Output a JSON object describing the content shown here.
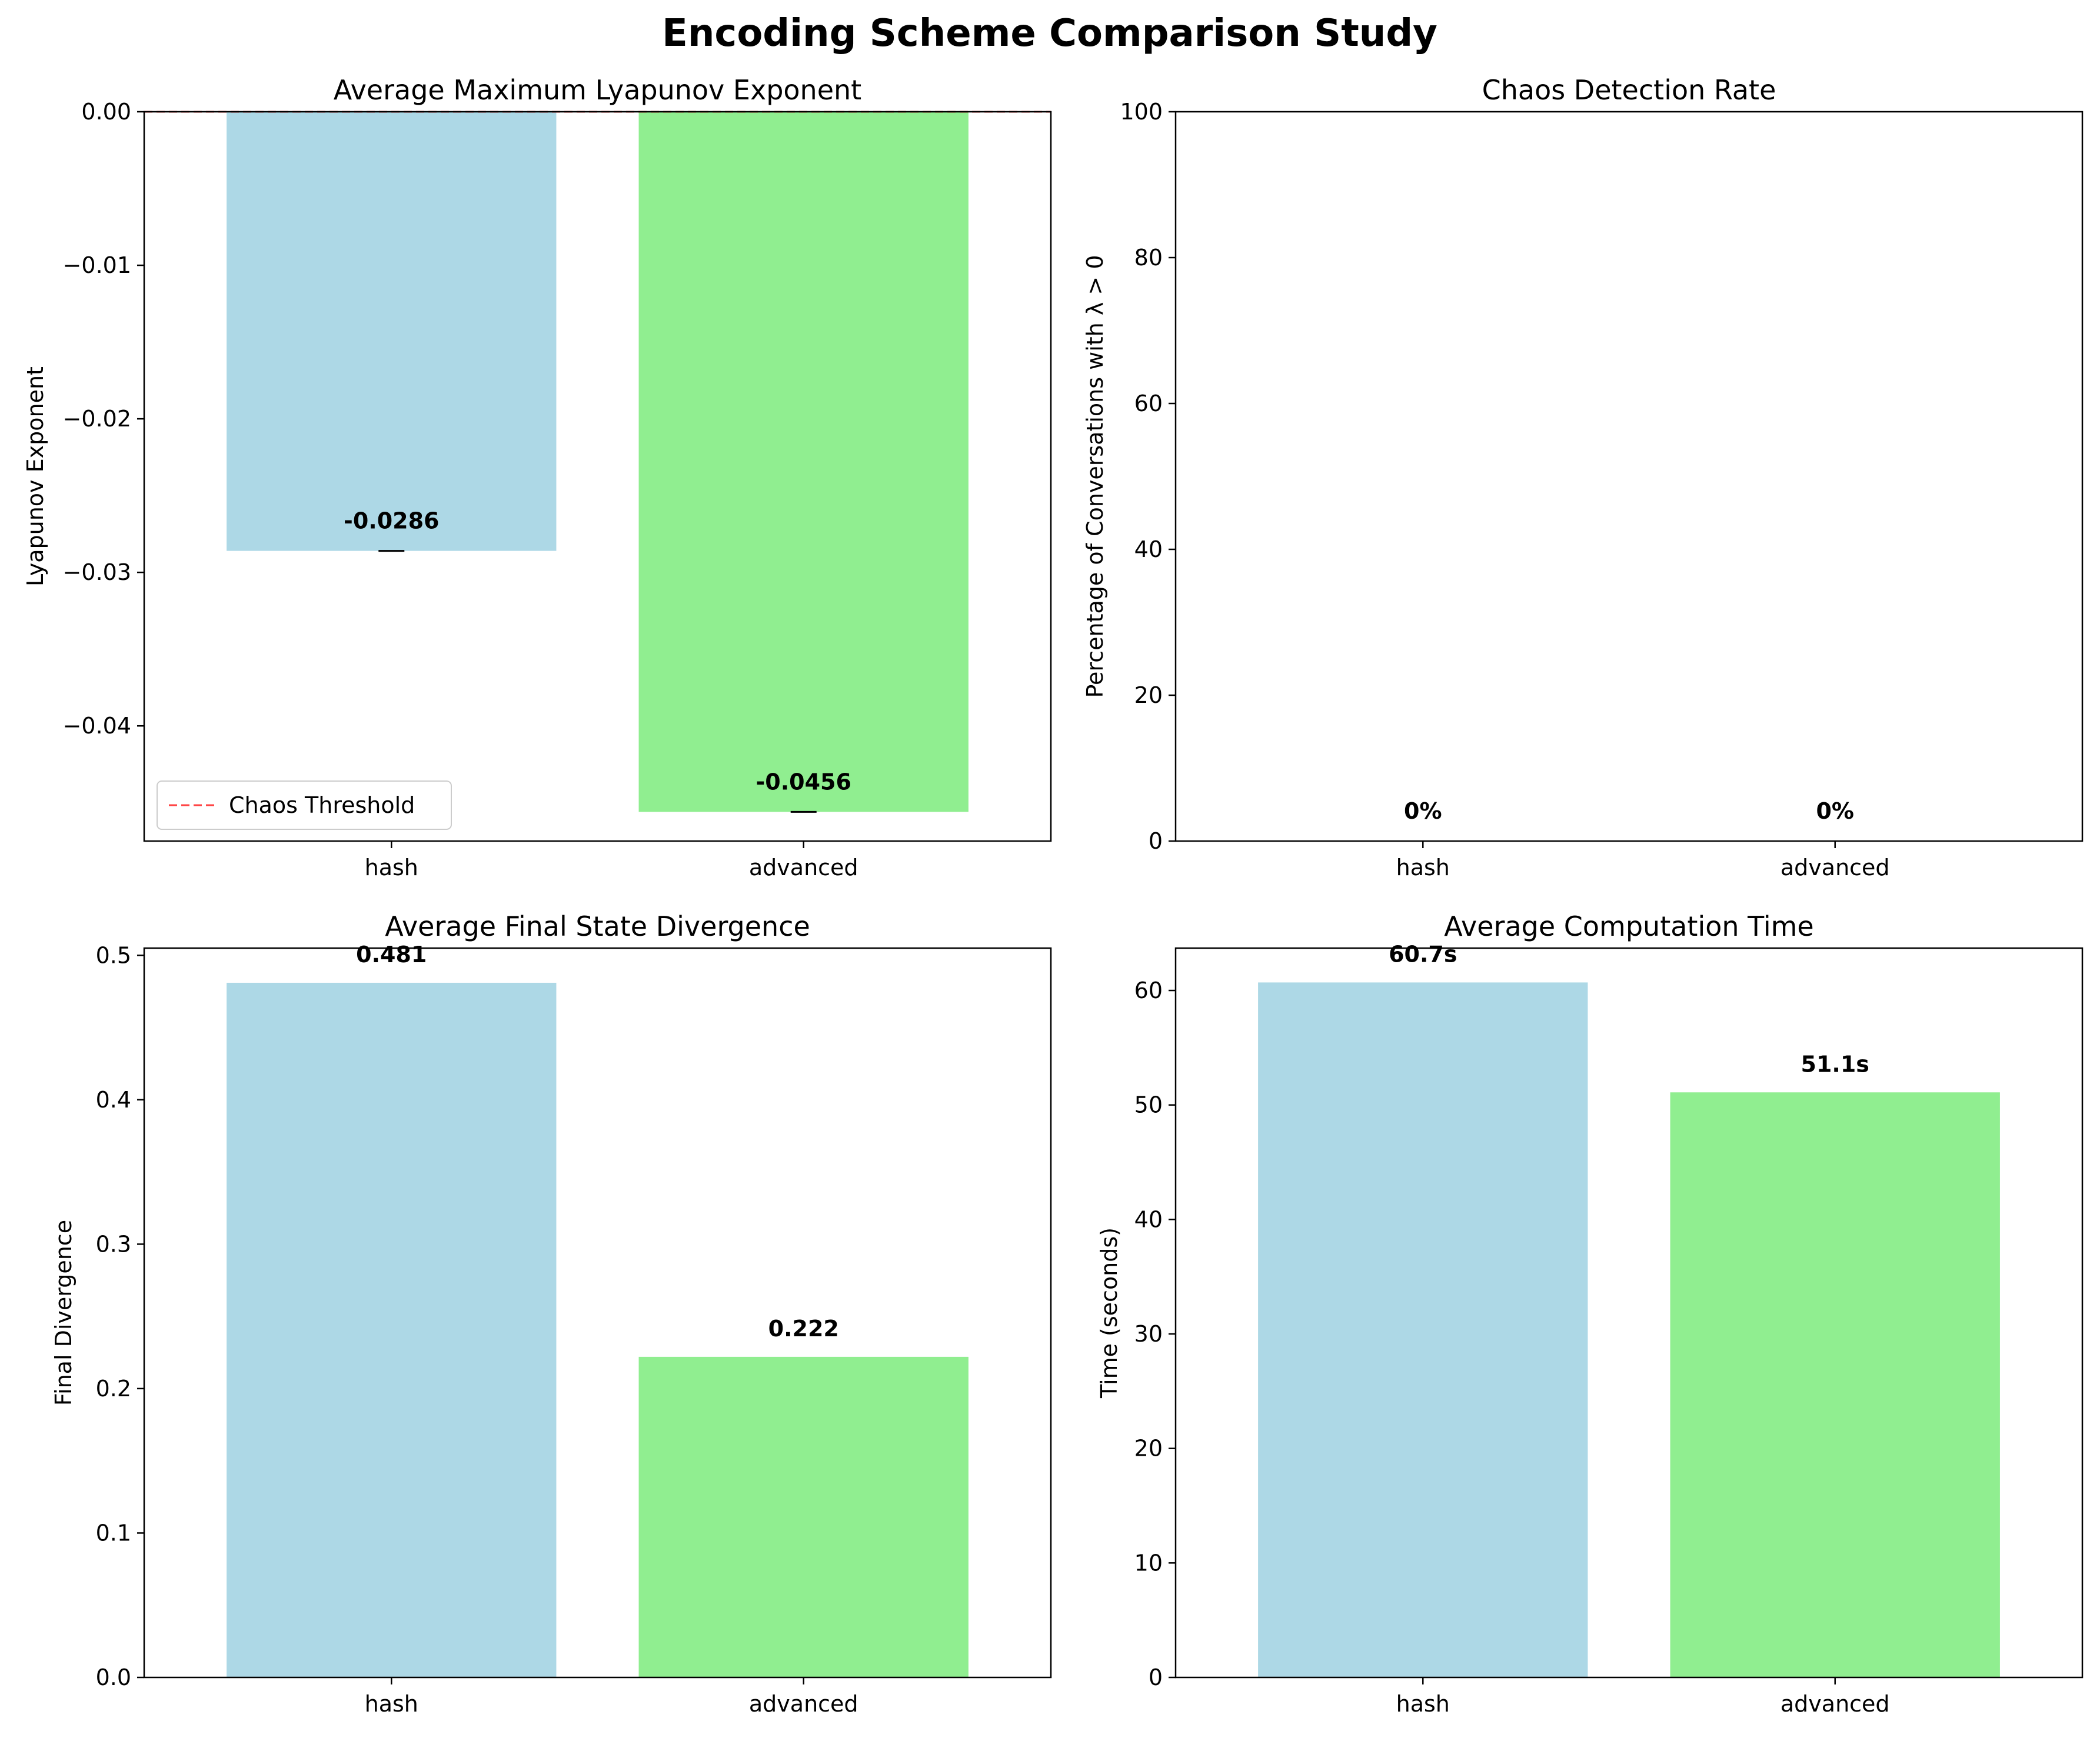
{
  "figure_title": "Encoding Scheme Comparison Study",
  "colors": {
    "hash": "#add8e6",
    "advanced": "#90ee90",
    "threshold": "#ff4444",
    "axis": "#000000"
  },
  "chart_data": [
    {
      "type": "bar",
      "title": "Average Maximum Lyapunov Exponent",
      "xlabel": "",
      "ylabel": "Lyapunov Exponent",
      "categories": [
        "hash",
        "advanced"
      ],
      "values": [
        -0.0286,
        -0.0456
      ],
      "value_labels": [
        "-0.0286",
        "-0.0456"
      ],
      "ylim": [
        -0.0475,
        0.0
      ],
      "yticks": [
        0.0,
        -0.01,
        -0.02,
        -0.03,
        -0.04
      ],
      "ytick_labels": [
        "0.00",
        "−0.01",
        "−0.02",
        "−0.03",
        "−0.04"
      ],
      "error_bars": true,
      "reference_line": {
        "y": 0.0,
        "style": "dashed",
        "label": "Chaos Threshold"
      },
      "legend": {
        "position": "lower-left",
        "entries": [
          "Chaos Threshold"
        ]
      }
    },
    {
      "type": "bar",
      "title": "Chaos Detection Rate",
      "xlabel": "",
      "ylabel": "Percentage of Conversations with λ > 0",
      "categories": [
        "hash",
        "advanced"
      ],
      "values": [
        0,
        0
      ],
      "value_labels": [
        "0%",
        "0%"
      ],
      "ylim": [
        0,
        100
      ],
      "yticks": [
        0,
        20,
        40,
        60,
        80,
        100
      ],
      "ytick_labels": [
        "0",
        "20",
        "40",
        "60",
        "80",
        "100"
      ]
    },
    {
      "type": "bar",
      "title": "Average Final State Divergence",
      "xlabel": "",
      "ylabel": "Final Divergence",
      "categories": [
        "hash",
        "advanced"
      ],
      "values": [
        0.481,
        0.222
      ],
      "value_labels": [
        "0.481",
        "0.222"
      ],
      "ylim": [
        0,
        0.505
      ],
      "yticks": [
        0.0,
        0.1,
        0.2,
        0.3,
        0.4,
        0.5
      ],
      "ytick_labels": [
        "0.0",
        "0.1",
        "0.2",
        "0.3",
        "0.4",
        "0.5"
      ]
    },
    {
      "type": "bar",
      "title": "Average Computation Time",
      "xlabel": "",
      "ylabel": "Time (seconds)",
      "categories": [
        "hash",
        "advanced"
      ],
      "values": [
        60.7,
        51.1
      ],
      "value_labels": [
        "60.7s",
        "51.1s"
      ],
      "ylim": [
        0,
        63.7
      ],
      "yticks": [
        0,
        10,
        20,
        30,
        40,
        50,
        60
      ],
      "ytick_labels": [
        "0",
        "10",
        "20",
        "30",
        "40",
        "50",
        "60"
      ]
    }
  ]
}
